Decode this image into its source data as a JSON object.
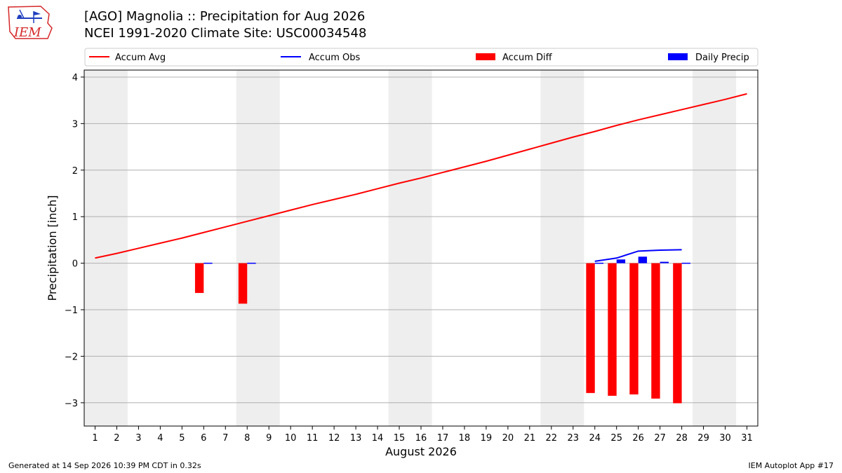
{
  "header": {
    "title_line1": "[AGO] Magnolia :: Precipitation for Aug 2026",
    "title_line2": "NCEI 1991-2020 Climate Site: USC00034548",
    "logo_text": "IEM"
  },
  "footer": {
    "generated": "Generated at 14 Sep 2026 10:39 PM CDT in 0.32s",
    "app": "IEM Autoplot App #17"
  },
  "chart_data": {
    "type": "bar",
    "xlabel": "August 2026",
    "ylabel": "Precipitation [inch]",
    "xlim": [
      0.5,
      31.5
    ],
    "ylim": [
      -3.5,
      4.15
    ],
    "x_ticks": [
      1,
      2,
      3,
      4,
      5,
      6,
      7,
      8,
      9,
      10,
      11,
      12,
      13,
      14,
      15,
      16,
      17,
      18,
      19,
      20,
      21,
      22,
      23,
      24,
      25,
      26,
      27,
      28,
      29,
      30,
      31
    ],
    "y_ticks": [
      -3,
      -2,
      -1,
      0,
      1,
      2,
      3,
      4
    ],
    "y_tick_labels": [
      "−3",
      "−2",
      "−1",
      "0",
      "1",
      "2",
      "3",
      "4"
    ],
    "grid": "horizontal",
    "legend_position": "top",
    "weekend_shading": [
      [
        1,
        2
      ],
      [
        8,
        9
      ],
      [
        15,
        16
      ],
      [
        22,
        23
      ],
      [
        29,
        30
      ]
    ],
    "colors": {
      "accum_avg": "#ff0000",
      "accum_obs": "#0000ff",
      "accum_diff": "#ff0000",
      "daily_precip": "#0000ff",
      "weekend": "#eeeeee",
      "grid": "#b0b0b0"
    },
    "series": [
      {
        "name": "Accum Avg",
        "kind": "line",
        "x": [
          1,
          2,
          3,
          4,
          5,
          6,
          7,
          8,
          9,
          10,
          11,
          12,
          13,
          14,
          15,
          16,
          17,
          18,
          19,
          20,
          21,
          22,
          23,
          24,
          25,
          26,
          27,
          28,
          29,
          30,
          31
        ],
        "values": [
          0.11,
          0.21,
          0.32,
          0.43,
          0.54,
          0.66,
          0.78,
          0.9,
          1.02,
          1.14,
          1.26,
          1.37,
          1.48,
          1.6,
          1.72,
          1.83,
          1.95,
          2.07,
          2.19,
          2.32,
          2.45,
          2.58,
          2.71,
          2.83,
          2.96,
          3.08,
          3.19,
          3.3,
          3.41,
          3.52,
          3.64
        ]
      },
      {
        "name": "Accum Obs",
        "kind": "line",
        "x": [
          24,
          25,
          26,
          27,
          28
        ],
        "values": [
          0.04,
          0.11,
          0.26,
          0.28,
          0.29
        ]
      },
      {
        "name": "Accum Diff",
        "kind": "bar",
        "x": [
          6,
          8,
          24,
          25,
          26,
          27,
          28
        ],
        "values": [
          -0.64,
          -0.87,
          -2.79,
          -2.85,
          -2.82,
          -2.91,
          -3.01
        ]
      },
      {
        "name": "Daily Precip",
        "kind": "bar",
        "x": [
          6,
          8,
          24,
          25,
          26,
          27,
          28
        ],
        "values": [
          0.01,
          0.01,
          0.01,
          0.08,
          0.14,
          0.03,
          0.01
        ]
      }
    ]
  }
}
